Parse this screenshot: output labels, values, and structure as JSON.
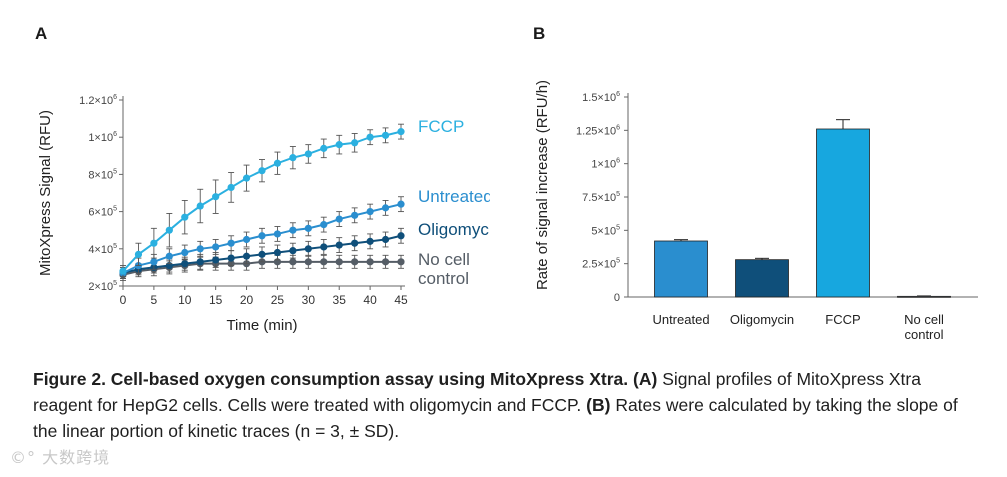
{
  "panels": {
    "a_label": "A",
    "b_label": "B"
  },
  "chart_data": [
    {
      "type": "line",
      "panel": "A",
      "xlabel": "Time (min)",
      "ylabel": "MitoXpress Signal (RFU)",
      "xlim": [
        0,
        45
      ],
      "ylim": [
        200000,
        1200000
      ],
      "x_ticks": [
        "0",
        "5",
        "10",
        "15",
        "20",
        "25",
        "30",
        "35",
        "40",
        "45"
      ],
      "y_ticks": [
        {
          "base": "2×10",
          "exp": "5",
          "value": 200000
        },
        {
          "base": "4×10",
          "exp": "5",
          "value": 400000
        },
        {
          "base": "6×10",
          "exp": "5",
          "value": 600000
        },
        {
          "base": "8×10",
          "exp": "5",
          "value": 800000
        },
        {
          "base": "1×10",
          "exp": "6",
          "value": 1000000
        },
        {
          "base": "1.2×10",
          "exp": "6",
          "value": 1200000
        }
      ],
      "x": [
        0,
        2.5,
        5,
        7.5,
        10,
        12.5,
        15,
        17.5,
        20,
        22.5,
        25,
        27.5,
        30,
        32.5,
        35,
        37.5,
        40,
        42.5,
        45
      ],
      "series": [
        {
          "name": "FCCP",
          "color": "#2bb0e0",
          "values": [
            280000,
            370000,
            430000,
            500000,
            570000,
            630000,
            680000,
            730000,
            780000,
            820000,
            860000,
            890000,
            910000,
            940000,
            960000,
            970000,
            1000000,
            1010000,
            1030000
          ],
          "errors": [
            30000,
            60000,
            80000,
            90000,
            90000,
            90000,
            90000,
            80000,
            70000,
            60000,
            60000,
            60000,
            50000,
            50000,
            50000,
            50000,
            40000,
            40000,
            40000
          ]
        },
        {
          "name": "Untreated",
          "color": "#2a8ecf",
          "values": [
            270000,
            310000,
            330000,
            360000,
            380000,
            400000,
            410000,
            430000,
            450000,
            470000,
            480000,
            500000,
            510000,
            530000,
            560000,
            580000,
            600000,
            620000,
            640000
          ],
          "errors": [
            30000,
            40000,
            40000,
            40000,
            40000,
            40000,
            40000,
            40000,
            40000,
            40000,
            40000,
            40000,
            40000,
            40000,
            40000,
            40000,
            40000,
            40000,
            40000
          ]
        },
        {
          "name": "Oligomycin",
          "color": "#0f4f7a",
          "values": [
            270000,
            290000,
            300000,
            310000,
            320000,
            330000,
            340000,
            350000,
            360000,
            370000,
            380000,
            390000,
            400000,
            410000,
            420000,
            430000,
            440000,
            450000,
            470000
          ],
          "errors": [
            30000,
            30000,
            30000,
            35000,
            35000,
            40000,
            40000,
            40000,
            40000,
            40000,
            40000,
            40000,
            40000,
            40000,
            40000,
            40000,
            40000,
            40000,
            40000
          ]
        },
        {
          "name": "No cell control",
          "label_lines": [
            "No cell",
            "control"
          ],
          "color": "#555d66",
          "values": [
            260000,
            280000,
            290000,
            300000,
            310000,
            320000,
            320000,
            320000,
            320000,
            330000,
            330000,
            330000,
            330000,
            330000,
            330000,
            330000,
            330000,
            330000,
            330000
          ],
          "errors": [
            30000,
            30000,
            35000,
            35000,
            35000,
            35000,
            35000,
            35000,
            35000,
            35000,
            35000,
            35000,
            35000,
            35000,
            35000,
            35000,
            35000,
            35000,
            35000
          ]
        }
      ]
    },
    {
      "type": "bar",
      "panel": "B",
      "xlabel": "",
      "ylabel": "Rate of signal increase (RFU/h)",
      "ylim": [
        0,
        1500000
      ],
      "y_ticks": [
        {
          "base": "0",
          "exp": "",
          "value": 0
        },
        {
          "base": "2.5×10",
          "exp": "5",
          "value": 250000
        },
        {
          "base": "5×10",
          "exp": "5",
          "value": 500000
        },
        {
          "base": "7.5×10",
          "exp": "5",
          "value": 750000
        },
        {
          "base": "1×10",
          "exp": "6",
          "value": 1000000
        },
        {
          "base": "1.25×10",
          "exp": "6",
          "value": 1250000
        },
        {
          "base": "1.5×10",
          "exp": "6",
          "value": 1500000
        }
      ],
      "categories": [
        {
          "label_lines": [
            "Untreated"
          ],
          "value": 420000,
          "error": 10000,
          "color": "#2a8ecf"
        },
        {
          "label_lines": [
            "Oligomycin"
          ],
          "value": 280000,
          "error": 10000,
          "color": "#0f4f7a"
        },
        {
          "label_lines": [
            "FCCP"
          ],
          "value": 1260000,
          "error": 70000,
          "color": "#17a7df"
        },
        {
          "label_lines": [
            "No cell",
            "control"
          ],
          "value": 5000,
          "error": 3000,
          "color": "#6b7580"
        }
      ]
    }
  ],
  "caption": {
    "title": "Figure 2. Cell-based oxygen consumption assay using MitoXpress Xtra.",
    "a_tag": "(A)",
    "a_text": "Signal profiles of MitoXpress Xtra reagent for HepG2 cells. Cells were treated with oligomycin and FCCP.",
    "b_tag": "(B)",
    "b_text": "Rates were calculated by taking the slope of the linear portion of kinetic traces (n = 3, ± SD)."
  },
  "watermark": "大数跨境"
}
